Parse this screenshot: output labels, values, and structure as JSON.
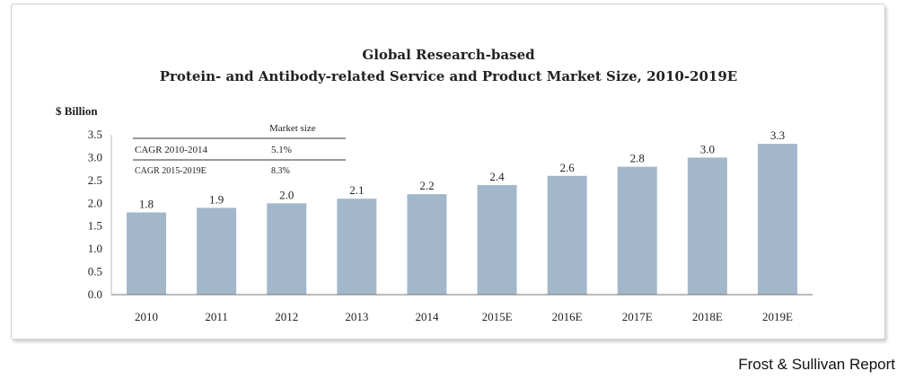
{
  "chart_data": {
    "type": "bar",
    "title": "Global Research-based",
    "subtitle": "Protein- and Antibody-related Service and Product Market Size, 2010-2019E",
    "ylabel": "$ Billion",
    "xlabel": "",
    "categories": [
      "2010",
      "2011",
      "2012",
      "2013",
      "2014",
      "2015E",
      "2016E",
      "2017E",
      "2018E",
      "2019E"
    ],
    "values": [
      1.8,
      1.9,
      2.0,
      2.1,
      2.2,
      2.4,
      2.6,
      2.8,
      3.0,
      3.3
    ],
    "value_labels": [
      "1.8",
      "1.9",
      "2.0",
      "2.1",
      "2.2",
      "2.4",
      "2.6",
      "2.8",
      "3.0",
      "3.3"
    ],
    "ylim": [
      0,
      3.5
    ],
    "yticks": [
      "0.0",
      "0.5",
      "1.0",
      "1.5",
      "2.0",
      "2.5",
      "3.0",
      "3.5"
    ],
    "bar_color": "#a3b7cb",
    "grid": false,
    "legend": "none"
  },
  "inset_table": {
    "header": "Market size",
    "rows": [
      {
        "label": "CAGR 2010-2014",
        "value": "5.1%"
      },
      {
        "label": "CAGR 2015-2019E",
        "value": "8.3%"
      }
    ]
  },
  "source": "Frost & Sullivan Report"
}
